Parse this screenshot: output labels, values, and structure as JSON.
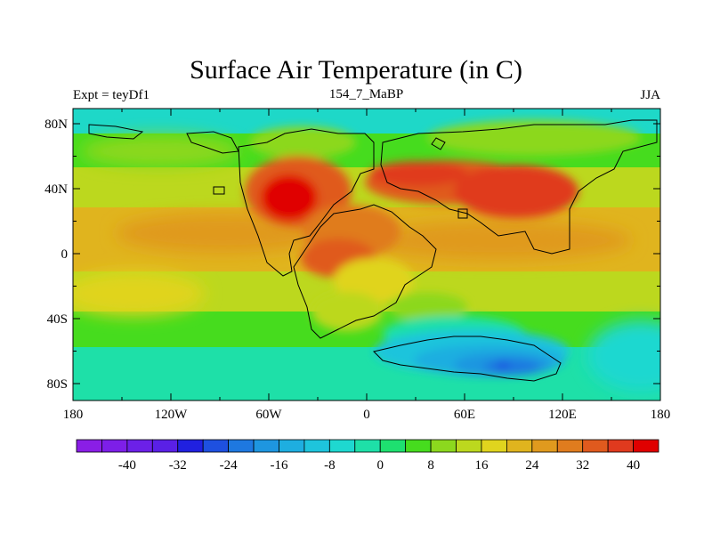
{
  "title": "Surface Air Temperature (in C)",
  "subtitle_left": "Expt = teyDf1",
  "subtitle_center": "154_7_MaBP",
  "subtitle_right": "JJA",
  "x_ticks": [
    "180",
    "120W",
    "60W",
    "0",
    "60E",
    "120E",
    "180"
  ],
  "y_ticks": [
    "80N",
    "40N",
    "0",
    "40S",
    "80S"
  ],
  "colorbar": {
    "labels": [
      "-40",
      "-32",
      "-24",
      "-16",
      "-8",
      "0",
      "8",
      "16",
      "24",
      "32",
      "40"
    ],
    "colors": [
      "#8a1ee6",
      "#7d1fe8",
      "#6c20e8",
      "#5a20e6",
      "#2020e0",
      "#1e50e0",
      "#1e78e0",
      "#1e96e0",
      "#1eaee0",
      "#1ec4dc",
      "#1ed8d0",
      "#1ee0a8",
      "#1ee070",
      "#46dc1e",
      "#8cd81e",
      "#bcd81e",
      "#e0d41e",
      "#e0b41e",
      "#e09a1e",
      "#e07c1e",
      "#e05a1e",
      "#e03a1e",
      "#e00000"
    ]
  }
}
